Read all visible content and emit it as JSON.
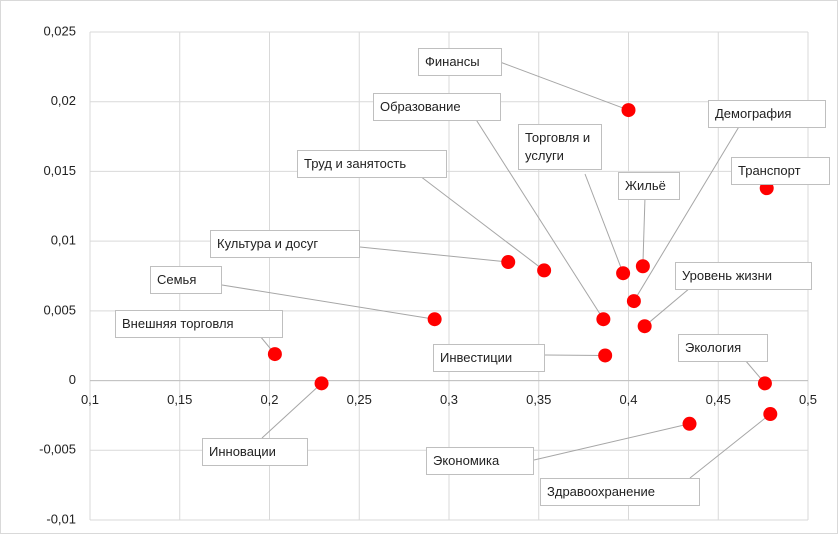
{
  "chart_data": {
    "type": "scatter",
    "labels": [
      "Финансы",
      "Образование",
      "Торговля и услуги",
      "Труд и занятость",
      "Культура и досуг",
      "Семья",
      "Внешняя торговля",
      "Инновации",
      "Инвестиции",
      "Жильё",
      "Демография",
      "Транспорт",
      "Уровень жизни",
      "Экология",
      "Экономика",
      "Здравоохранение"
    ],
    "x": [
      0.4,
      0.386,
      0.397,
      0.353,
      0.333,
      0.292,
      0.203,
      0.229,
      0.387,
      0.408,
      0.403,
      0.477,
      0.409,
      0.476,
      0.434,
      0.479
    ],
    "y": [
      0.0194,
      0.0044,
      0.0077,
      0.0079,
      0.0085,
      0.0044,
      0.0019,
      -0.0002,
      0.0018,
      0.0082,
      0.0057,
      0.0138,
      0.0039,
      -0.0002,
      -0.0031,
      -0.0024
    ],
    "color": "#ff0000",
    "xlim": [
      0.1,
      0.5
    ],
    "xticks": [
      {
        "value": 0.1,
        "label": "0,1"
      },
      {
        "value": 0.15,
        "label": "0,15"
      },
      {
        "value": 0.2,
        "label": "0,2"
      },
      {
        "value": 0.25,
        "label": "0,25"
      },
      {
        "value": 0.3,
        "label": "0,3"
      },
      {
        "value": 0.35,
        "label": "0,35"
      },
      {
        "value": 0.4,
        "label": "0,4"
      },
      {
        "value": 0.45,
        "label": "0,45"
      },
      {
        "value": 0.5,
        "label": "0,5"
      }
    ],
    "ylim": [
      -0.01,
      0.025
    ],
    "yticks": [
      {
        "value": -0.01,
        "label": "-0,01"
      },
      {
        "value": -0.005,
        "label": "-0,005"
      },
      0,
      {
        "value": 0.005,
        "label": "0,005"
      },
      {
        "value": 0.01,
        "label": "0,01"
      },
      {
        "value": 0.015,
        "label": "0,015"
      },
      {
        "value": 0.02,
        "label": "0,02"
      },
      {
        "value": 0.025,
        "label": "0,025"
      }
    ],
    "grid": true
  }
}
